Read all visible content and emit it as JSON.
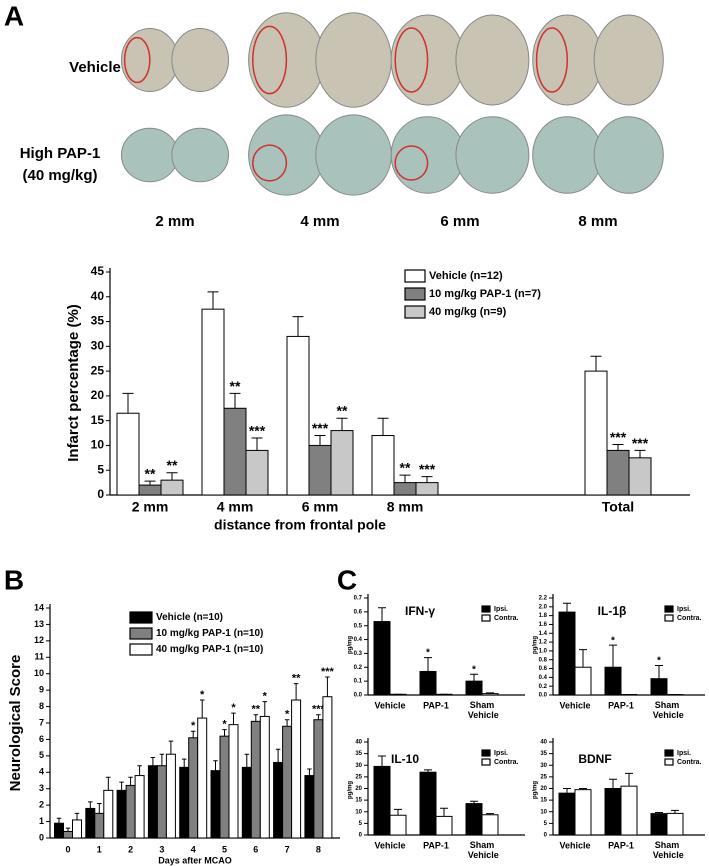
{
  "panel_a_images": {
    "rows": [
      "Vehicle",
      [
        "High PAP-1",
        "(40 mg/kg)"
      ]
    ],
    "columns": [
      "2 mm",
      "4 mm",
      "6 mm",
      "8 mm"
    ]
  },
  "chart_data": [
    {
      "type": "bar",
      "panel": "A",
      "ylabel": "Infarct percentage (%)",
      "xlabel": "distance from frontal pole",
      "categories": [
        "2 mm",
        "4 mm",
        "6 mm",
        "8 mm",
        "Total"
      ],
      "ylim": [
        0,
        45
      ],
      "yticks": [
        0,
        5,
        10,
        15,
        20,
        25,
        30,
        35,
        40,
        45
      ],
      "series": [
        {
          "name": "Vehicle (n=12)",
          "color": "#ffffff",
          "values": [
            16.5,
            37.5,
            32,
            12,
            25
          ],
          "errors": [
            4,
            3.5,
            4,
            3.5,
            3
          ]
        },
        {
          "name": "10 mg/kg PAP-1 (n=7)",
          "color": "#808080",
          "values": [
            2,
            17.5,
            10,
            2.5,
            9
          ],
          "errors": [
            0.8,
            3,
            2,
            1.5,
            1.2
          ],
          "stars": [
            "**",
            "**",
            "***",
            "**",
            "***"
          ]
        },
        {
          "name": "40 mg/kg (n=9)",
          "color": "#c8c8c8",
          "values": [
            3,
            9,
            13,
            2.5,
            7.5
          ],
          "errors": [
            1.5,
            2.5,
            2.5,
            1.2,
            1.5
          ],
          "stars": [
            "**",
            "***",
            "**",
            "***",
            "***"
          ]
        }
      ]
    },
    {
      "type": "bar",
      "panel": "B",
      "ylabel": "Neurological Score",
      "xlabel": "Days after MCAO",
      "categories": [
        "0",
        "1",
        "2",
        "3",
        "4",
        "5",
        "6",
        "7",
        "8"
      ],
      "ylim": [
        0,
        14
      ],
      "yticks": [
        0,
        1,
        2,
        3,
        4,
        5,
        6,
        7,
        8,
        9,
        10,
        11,
        12,
        13,
        14
      ],
      "series": [
        {
          "name": "Vehicle (n=10)",
          "color": "#000000",
          "values": [
            0.9,
            1.8,
            2.9,
            4.4,
            4.3,
            4.1,
            4.3,
            4.6,
            3.8
          ],
          "errors": [
            0.3,
            0.4,
            0.5,
            0.5,
            0.5,
            0.6,
            0.8,
            0.8,
            0.4
          ]
        },
        {
          "name": "10 mg/kg PAP-1 (n=10)",
          "color": "#808080",
          "values": [
            0.4,
            1.5,
            3.2,
            4.4,
            6.1,
            6.2,
            7.1,
            6.8,
            7.2
          ],
          "errors": [
            0.2,
            0.6,
            0.5,
            0.7,
            0.4,
            0.4,
            0.4,
            0.4,
            0.3
          ],
          "stars": [
            null,
            null,
            null,
            null,
            "*",
            "*",
            "**",
            "*",
            "***"
          ]
        },
        {
          "name": "40 mg/kg PAP-1 (n=10)",
          "color": "#ffffff",
          "values": [
            1.1,
            2.9,
            3.8,
            5.1,
            7.3,
            6.9,
            7.4,
            8.4,
            8.6
          ],
          "errors": [
            0.4,
            0.8,
            0.6,
            0.8,
            1.1,
            0.7,
            0.9,
            1.0,
            1.2
          ],
          "stars": [
            null,
            null,
            null,
            null,
            "*",
            "*",
            "*",
            "**",
            "***"
          ]
        }
      ]
    },
    {
      "type": "bar",
      "panel": "C",
      "title": "IFN-γ",
      "ylabel": "pg/mg",
      "categories": [
        "Vehicle",
        "PAP-1",
        "Sham Vehicle"
      ],
      "ylim": [
        0,
        0.7
      ],
      "yticks": [
        {
          "value": 0,
          "label": "0.0"
        },
        0.1,
        0.2,
        0.3,
        0.4,
        0.5,
        0.6,
        0.7
      ],
      "series": [
        {
          "name": "Ipsi.",
          "color": "#000000",
          "values": [
            0.53,
            0.17,
            0.1
          ],
          "errors": [
            0.1,
            0.1,
            0.05
          ],
          "stars": [
            null,
            "*",
            "*"
          ]
        },
        {
          "name": "Contra.",
          "color": "#ffffff",
          "values": [
            0.005,
            0.005,
            0.01
          ],
          "errors": [
            0,
            0,
            0.005
          ]
        }
      ]
    },
    {
      "type": "bar",
      "title": "IL-1β",
      "ylabel": "pg/mg",
      "categories": [
        "Vehicle",
        "PAP-1",
        "Sham Vehicle"
      ],
      "ylim": [
        0,
        2.2
      ],
      "yticks": [
        {
          "value": 0,
          "label": "0.0"
        },
        0.2,
        0.4,
        0.6,
        0.8,
        {
          "value": 1,
          "label": "1.0"
        },
        1.2,
        1.4,
        1.6,
        1.8,
        {
          "value": 2,
          "label": "2.0"
        },
        2.2
      ],
      "series": [
        {
          "name": "Ipsi.",
          "color": "#000000",
          "values": [
            1.88,
            0.63,
            0.37
          ],
          "errors": [
            0.2,
            0.5,
            0.3
          ],
          "stars": [
            null,
            "*",
            "*"
          ]
        },
        {
          "name": "Contra.",
          "color": "#ffffff",
          "values": [
            0.63,
            0.01,
            0.01
          ],
          "errors": [
            0.4,
            0,
            0
          ]
        }
      ]
    },
    {
      "type": "bar",
      "title": "IL-10",
      "ylabel": "pg/mg",
      "categories": [
        "Vehicle",
        "PAP-1",
        "Sham Vehicle"
      ],
      "ylim": [
        0,
        40
      ],
      "yticks": [
        0,
        5,
        10,
        15,
        20,
        25,
        30,
        35,
        40
      ],
      "series": [
        {
          "name": "Ipsi.",
          "color": "#000000",
          "values": [
            29.5,
            27,
            13.5
          ],
          "errors": [
            4.5,
            1,
            1
          ]
        },
        {
          "name": "Contra.",
          "color": "#ffffff",
          "values": [
            8.5,
            8,
            8.7
          ],
          "errors": [
            2.5,
            3.5,
            0.5
          ]
        }
      ]
    },
    {
      "type": "bar",
      "title": "BDNF",
      "ylabel": "pg/mg",
      "categories": [
        "Vehicle",
        "PAP-1",
        "Sham Vehicle"
      ],
      "ylim": [
        0,
        40
      ],
      "yticks": [
        0,
        5,
        10,
        15,
        20,
        25,
        30,
        35,
        40
      ],
      "series": [
        {
          "name": "Ipsi.",
          "color": "#000000",
          "values": [
            18,
            20,
            9.2
          ],
          "errors": [
            2,
            4,
            0.5
          ]
        },
        {
          "name": "Contra.",
          "color": "#ffffff",
          "values": [
            19.5,
            21,
            9.3
          ],
          "errors": [
            0.5,
            5.5,
            1.3
          ]
        }
      ]
    }
  ]
}
